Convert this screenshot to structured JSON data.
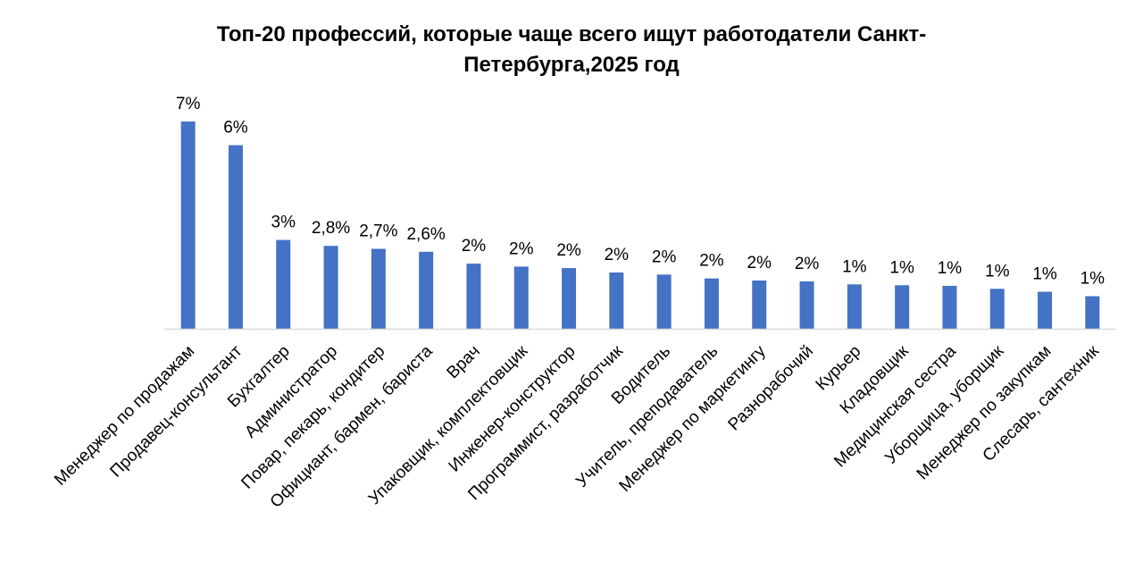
{
  "chart_data": {
    "type": "bar",
    "title_lines": [
      "Топ-20 профессий, которые чаще всего ищут работодатели Санкт-",
      "Петербурга,2025 год"
    ],
    "xlabel": "",
    "ylabel": "",
    "ylim": [
      0,
      8
    ],
    "grid": false,
    "legend": "none",
    "bar_color": "#4472c4",
    "categories": [
      "Менеджер по продажам",
      "Продавец-консультант",
      "Бухгалтер",
      "Администратор",
      "Повар, пекарь, кондитер",
      "Официант, бармен, бариста",
      "Врач",
      "Упаковщик, комплектовщик",
      "Инженер-конструктор",
      "Программист, разработчик",
      "Водитель",
      "Учитель, преподаватель",
      "Менеджер по маркетингу",
      "Разнорабочий",
      "Курьер",
      "Кладовщик",
      "Медицинская сестра",
      "Уборщица, уборщик",
      "Менеджер по закупкам",
      "Слесарь, сантехник"
    ],
    "values": [
      7.0,
      6.2,
      3.0,
      2.8,
      2.7,
      2.6,
      2.2,
      2.1,
      2.05,
      1.9,
      1.83,
      1.7,
      1.63,
      1.6,
      1.5,
      1.47,
      1.45,
      1.35,
      1.25,
      1.1
    ],
    "data_labels": [
      "7%",
      "6%",
      "3%",
      "2,8%",
      "2,7%",
      "2,6%",
      "2%",
      "2%",
      "2%",
      "2%",
      "2%",
      "2%",
      "2%",
      "2%",
      "1%",
      "1%",
      "1%",
      "1%",
      "1%",
      "1%"
    ]
  }
}
